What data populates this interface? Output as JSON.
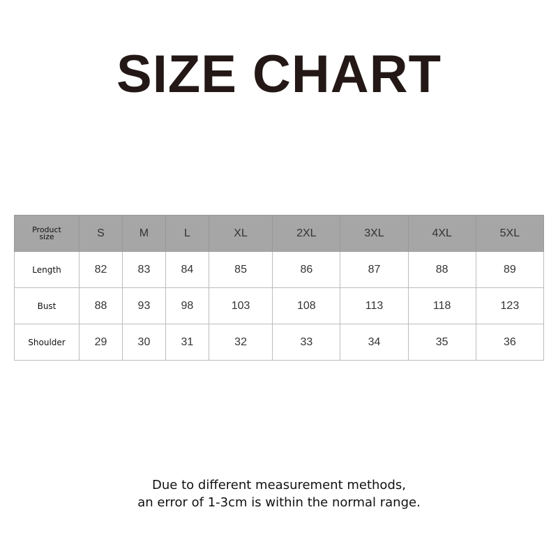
{
  "title": "SIZE CHART",
  "table": {
    "corner_label": [
      "Product",
      "size"
    ],
    "sizes": [
      "S",
      "M",
      "L",
      "XL",
      "2XL",
      "3XL",
      "4XL",
      "5XL"
    ],
    "rows": [
      {
        "label": "Length",
        "values": [
          "82",
          "83",
          "84",
          "85",
          "86",
          "87",
          "88",
          "89"
        ]
      },
      {
        "label": "Bust",
        "values": [
          "88",
          "93",
          "98",
          "103",
          "108",
          "113",
          "118",
          "123"
        ]
      },
      {
        "label": "Shoulder",
        "values": [
          "29",
          "30",
          "31",
          "32",
          "33",
          "34",
          "35",
          "36"
        ]
      }
    ],
    "header_color": "#a6a6a6"
  },
  "note": {
    "line1": "Due to different measurement methods,",
    "line2": "an error of 1-3cm is within the normal range."
  }
}
